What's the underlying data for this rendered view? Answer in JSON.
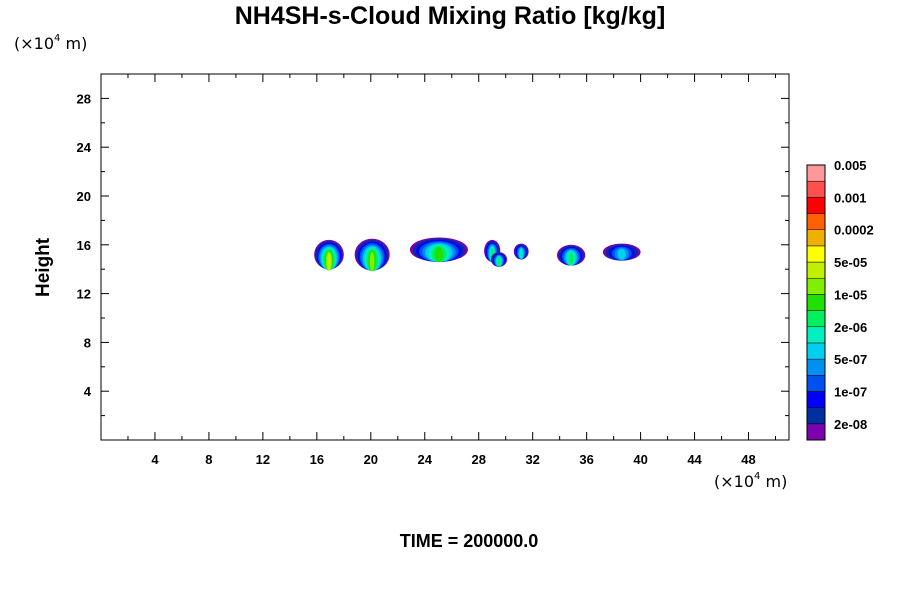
{
  "chart_data": {
    "type": "heatmap",
    "title": "NH4SH-s-Cloud Mixing Ratio [kg/kg]",
    "ylabel": "Height",
    "xunit": {
      "prefix": "(×10",
      "exp": "4",
      "suffix": " m)"
    },
    "yunit": {
      "prefix": "(×10",
      "exp": "4",
      "suffix": " m)"
    },
    "xlim": [
      0,
      51
    ],
    "ylim": [
      0,
      30
    ],
    "xticks": [
      4,
      8,
      12,
      16,
      20,
      24,
      28,
      32,
      36,
      40,
      44,
      48
    ],
    "yticks": [
      4,
      8,
      12,
      16,
      20,
      24,
      28
    ],
    "colorbar": {
      "colors": [
        "#7a00b0",
        "#002fa0",
        "#0000ff",
        "#0050f0",
        "#0090f0",
        "#00d0f0",
        "#00f0c0",
        "#00f060",
        "#20e000",
        "#80f000",
        "#c0f000",
        "#ffff00",
        "#f0b000",
        "#ff6000",
        "#ff0000",
        "#ff5050",
        "#ff9898"
      ],
      "labels": [
        "2e-08",
        "1e-07",
        "5e-07",
        "2e-06",
        "1e-05",
        "5e-05",
        "0.0002",
        "0.001",
        "0.005"
      ]
    },
    "clouds": [
      {
        "x": [
          15.8,
          18.0
        ],
        "y": [
          14.0,
          16.4
        ],
        "peak": 10
      },
      {
        "x": [
          18.8,
          21.4
        ],
        "y": [
          13.9,
          16.5
        ],
        "peak": 9
      },
      {
        "x": [
          22.9,
          27.2
        ],
        "y": [
          14.6,
          16.6
        ],
        "peak": 8
      },
      {
        "x": [
          28.4,
          29.6
        ],
        "y": [
          14.6,
          16.4
        ],
        "peak": 7
      },
      {
        "x": [
          28.9,
          30.1
        ],
        "y": [
          14.2,
          15.4
        ],
        "peak": 7
      },
      {
        "x": [
          30.6,
          31.7
        ],
        "y": [
          14.8,
          16.1
        ],
        "peak": 6
      },
      {
        "x": [
          33.8,
          35.9
        ],
        "y": [
          14.3,
          16.0
        ],
        "peak": 7
      },
      {
        "x": [
          37.2,
          40.0
        ],
        "y": [
          14.7,
          16.1
        ],
        "peak": 5
      }
    ]
  },
  "footer": {
    "time_label": "TIME = 200000.0"
  }
}
